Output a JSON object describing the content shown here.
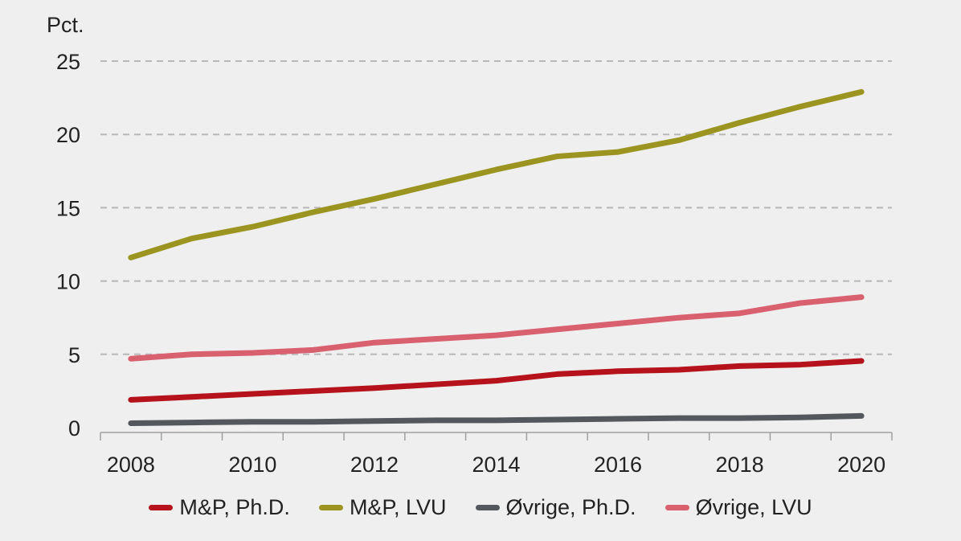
{
  "chart_data": {
    "type": "line",
    "title": "",
    "ylabel": "Pct.",
    "xlabel": "",
    "ylim": [
      0,
      25
    ],
    "yticks": [
      0,
      5,
      10,
      15,
      20,
      25
    ],
    "x": [
      2008,
      2009,
      2010,
      2011,
      2012,
      2013,
      2014,
      2015,
      2016,
      2017,
      2018,
      2019,
      2020
    ],
    "xtick_labels": [
      "2008",
      "2010",
      "2012",
      "2014",
      "2016",
      "2018",
      "2020"
    ],
    "grid": "horizontal-dashed",
    "legend_position": "bottom",
    "series": [
      {
        "name": "M&P, Ph.D.",
        "color": "#b5121b",
        "values": [
          1.9,
          2.1,
          2.3,
          2.5,
          2.7,
          2.95,
          3.2,
          3.65,
          3.85,
          3.95,
          4.2,
          4.3,
          4.55
        ]
      },
      {
        "name": "M&P, LVU",
        "color": "#9c9420",
        "values": [
          11.6,
          12.9,
          13.7,
          14.7,
          15.6,
          16.6,
          17.6,
          18.5,
          18.8,
          19.6,
          20.8,
          21.9,
          22.9
        ]
      },
      {
        "name": "Øvrige, Ph.D.",
        "color": "#54585d",
        "values": [
          0.3,
          0.35,
          0.4,
          0.4,
          0.45,
          0.5,
          0.5,
          0.55,
          0.6,
          0.65,
          0.65,
          0.7,
          0.8
        ]
      },
      {
        "name": "Øvrige, LVU",
        "color": "#d9606e",
        "values": [
          4.7,
          5.0,
          5.1,
          5.3,
          5.8,
          6.05,
          6.3,
          6.7,
          7.1,
          7.5,
          7.8,
          8.5,
          8.9
        ]
      }
    ]
  }
}
